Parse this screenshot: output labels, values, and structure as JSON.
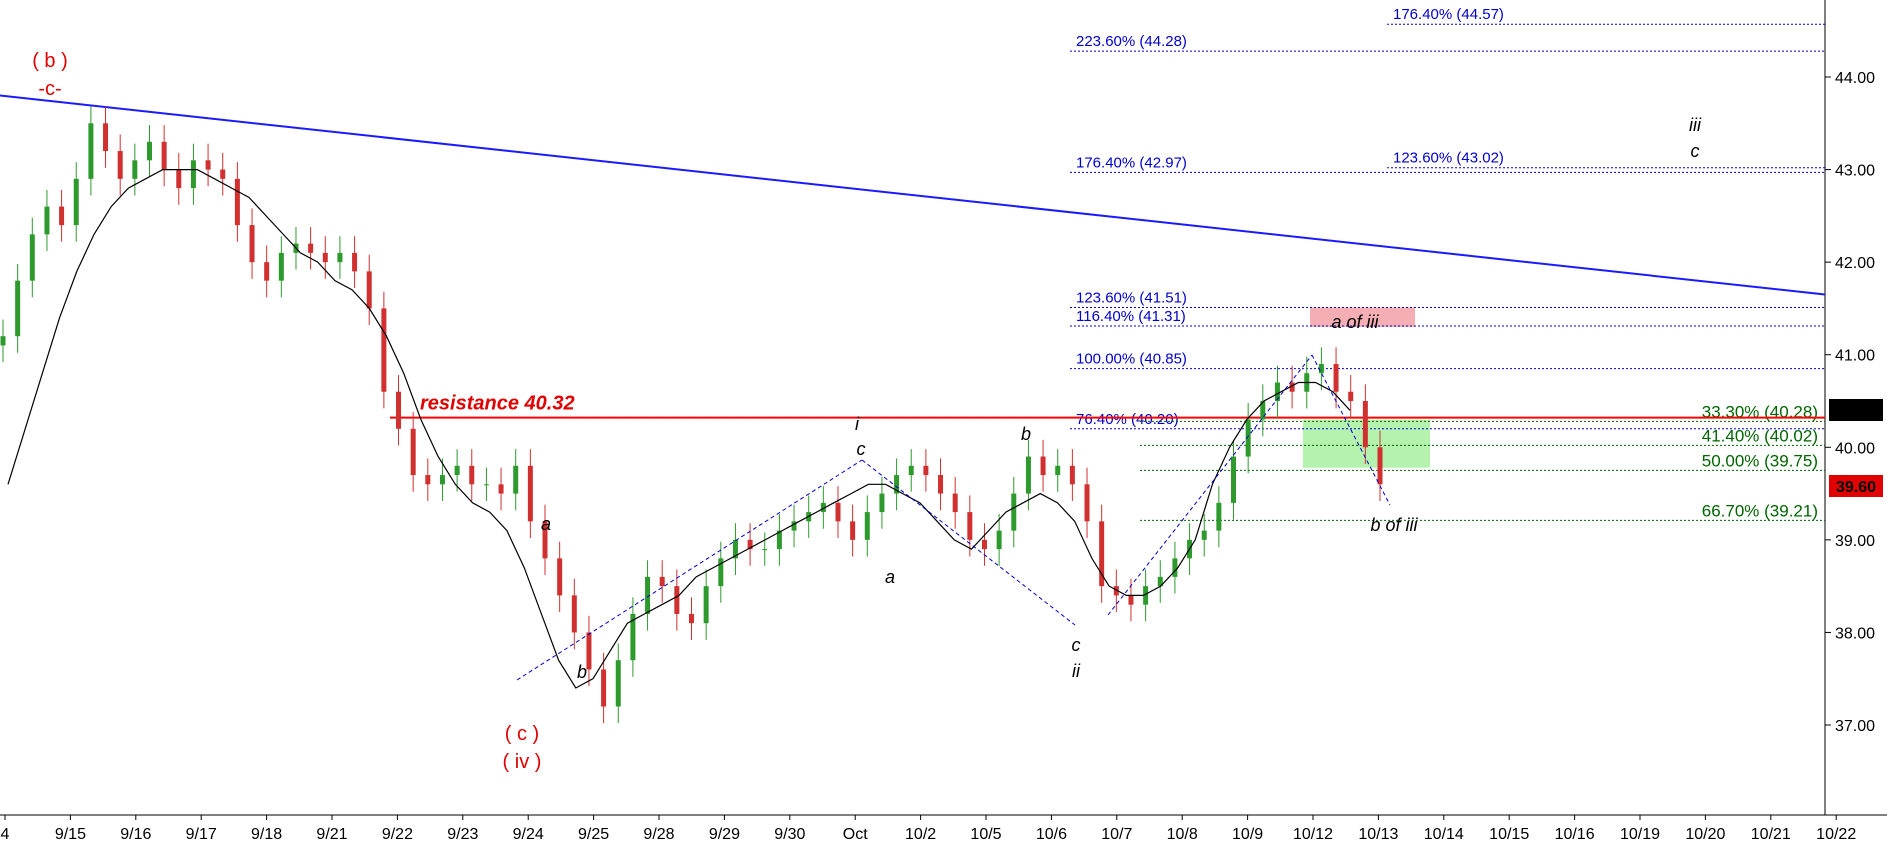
{
  "chart_data": {
    "type": "candlestick",
    "x_tick_labels": [
      "4",
      "9/15",
      "9/16",
      "9/17",
      "9/18",
      "9/21",
      "9/22",
      "9/23",
      "9/24",
      "9/25",
      "9/28",
      "9/29",
      "9/30",
      "Oct",
      "10/2",
      "10/5",
      "10/6",
      "10/7",
      "10/8",
      "10/9",
      "10/12",
      "10/13",
      "10/14",
      "10/15",
      "10/16",
      "10/19",
      "10/20",
      "10/21",
      "10/22"
    ],
    "y_ticks": [
      "37.00",
      "38.00",
      "39.00",
      "40.00",
      "41.00",
      "42.00",
      "43.00",
      "44.00"
    ],
    "ylim": [
      36.0,
      44.8
    ],
    "price_series": [
      41.2,
      41.8,
      42.3,
      42.6,
      42.4,
      42.9,
      43.5,
      43.2,
      42.9,
      43.1,
      43.3,
      43.0,
      42.8,
      43.1,
      43.0,
      42.9,
      42.4,
      42.0,
      41.8,
      42.1,
      42.2,
      42.1,
      42.0,
      42.1,
      41.9,
      41.5,
      40.6,
      40.2,
      39.7,
      39.6,
      39.7,
      39.8,
      39.6,
      39.6,
      39.5,
      39.8,
      39.2,
      38.8,
      38.4,
      38.0,
      37.6,
      37.2,
      37.7,
      38.2,
      38.6,
      38.5,
      38.2,
      38.1,
      38.5,
      38.8,
      39.0,
      38.9,
      38.9,
      39.1,
      39.2,
      39.3,
      39.4,
      39.2,
      39.0,
      39.3,
      39.5,
      39.7,
      39.8,
      39.7,
      39.5,
      39.3,
      39.0,
      38.9,
      39.1,
      39.5,
      39.9,
      39.7,
      39.8,
      39.6,
      39.2,
      38.5,
      38.4,
      38.3,
      38.5,
      38.6,
      38.8,
      39.0,
      39.1,
      39.4,
      39.9,
      40.3,
      40.5,
      40.7,
      40.6,
      40.8,
      40.9,
      40.6,
      40.5,
      40.0,
      39.6
    ],
    "moving_average": [
      39.6,
      40.2,
      40.8,
      41.4,
      41.9,
      42.3,
      42.6,
      42.8,
      42.9,
      43.0,
      43.0,
      43.0,
      42.9,
      42.8,
      42.7,
      42.5,
      42.3,
      42.1,
      42.0,
      41.8,
      41.7,
      41.5,
      41.2,
      40.8,
      40.3,
      39.9,
      39.6,
      39.4,
      39.3,
      39.1,
      38.7,
      38.2,
      37.7,
      37.4,
      37.5,
      37.8,
      38.1,
      38.2,
      38.3,
      38.4,
      38.6,
      38.7,
      38.8,
      38.9,
      39.0,
      39.1,
      39.2,
      39.3,
      39.4,
      39.5,
      39.6,
      39.6,
      39.5,
      39.4,
      39.2,
      39.0,
      38.9,
      39.1,
      39.3,
      39.4,
      39.5,
      39.4,
      39.2,
      38.8,
      38.5,
      38.4,
      38.4,
      38.5,
      38.7,
      39.0,
      39.6,
      40.0,
      40.3,
      40.5,
      40.6,
      40.7,
      40.7,
      40.6,
      40.4
    ],
    "last_price": "40.42",
    "current_price": "39.60",
    "resistance": {
      "label": "resistance 40.32",
      "value": 40.32
    },
    "trendline": {
      "start_value": 43.8,
      "end_value": 41.65
    },
    "fib_levels_blue": [
      {
        "label": "176.40% (44.57)",
        "value": 44.57
      },
      {
        "label": "223.60% (44.28)",
        "value": 44.28
      },
      {
        "label": "176.40% (42.97)",
        "value": 42.97
      },
      {
        "label": "123.60% (43.02)",
        "value": 43.02
      },
      {
        "label": "123.60% (41.51)",
        "value": 41.51
      },
      {
        "label": "116.40% (41.31)",
        "value": 41.31
      },
      {
        "label": "100.00% (40.85)",
        "value": 40.85
      },
      {
        "label": "76.40% (40.20)",
        "value": 40.2
      }
    ],
    "fib_levels_green": [
      {
        "label": "33.30% (40.28)",
        "value": 40.28
      },
      {
        "label": "41.40% (40.02)",
        "value": 40.02
      },
      {
        "label": "50.00% (39.75)",
        "value": 39.75
      },
      {
        "label": "66.70% (39.21)",
        "value": 39.21
      }
    ],
    "zones": [
      {
        "label": "a of iii",
        "color": "#f4a0a8",
        "low": 41.3,
        "high": 41.51
      },
      {
        "label": "",
        "color": "#a8f0a0",
        "low": 39.78,
        "high": 40.3
      }
    ],
    "wave_labels_red": [
      "( b )",
      "-c-",
      "( c )",
      "( iv )"
    ],
    "wave_labels_black": [
      "a",
      "b",
      "i",
      "c",
      "a",
      "b",
      "c",
      "ii",
      "b of iii",
      "iii",
      "c"
    ],
    "colors": {
      "trendline": "#1a1aff",
      "resistance": "#ff0000",
      "fib_blue": "#0000cc",
      "fib_green": "#006600",
      "wave_red": "#e00000",
      "last_price_bg": "#000000",
      "current_price_bg": "#e00000",
      "up_candle": "#2e9a2e",
      "down_candle": "#d03030"
    }
  }
}
